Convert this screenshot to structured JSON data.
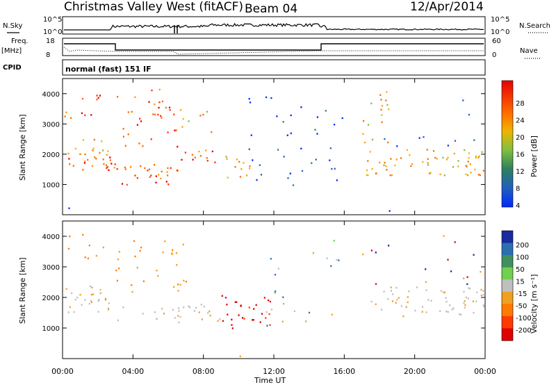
{
  "header": {
    "title": "Christmas Valley West (fitACF)",
    "beam": "Beam 04",
    "date": "12/Apr/2014"
  },
  "summary_panel": {
    "nsky_label": "N.Sky",
    "freq_label_line1": "Freq.",
    "freq_label_line2": "[MHz]",
    "cpid_label": "CPID",
    "nsearch_label": "N.Search",
    "nave_label": "Nave",
    "noise_ticks": [
      "10^5",
      "10^0"
    ],
    "noise_ticks_right": [
      "10^5",
      "10^0"
    ],
    "freq_ticks": [
      "18",
      "8"
    ],
    "nave_ticks": [
      "60",
      "0"
    ],
    "cpid_text": "normal (fast) 151 IF"
  },
  "chart_data": [
    {
      "type": "heatmap",
      "panel": "power",
      "ylabel": "Slant Range [km]",
      "yticks": [
        "1000",
        "2000",
        "3000",
        "4000"
      ],
      "ylim": [
        0,
        4500
      ],
      "xlim": [
        0,
        24
      ],
      "colorbar_label": "Power [dB]",
      "colorbar_ticks": [
        "28",
        "24",
        "20",
        "16",
        "12",
        "8",
        "4"
      ],
      "colorbar_colors": [
        "#e60000",
        "#ff3000",
        "#ff6a00",
        "#ff9d00",
        "#f0b400",
        "#7fbf3f",
        "#4f9f6f",
        "#2f7f5f",
        "#2060c0",
        "#0028ff"
      ]
    },
    {
      "type": "heatmap",
      "panel": "velocity",
      "ylabel": "Slant Range [km]",
      "yticks": [
        "1000",
        "2000",
        "3000",
        "4000"
      ],
      "ylim": [
        0,
        4500
      ],
      "xlim": [
        0,
        24
      ],
      "xlabel": "Time UT",
      "xticks": [
        "00:00",
        "04:00",
        "08:00",
        "12:00",
        "16:00",
        "20:00",
        "00:00"
      ],
      "colorbar_label": "Velocity [m s⁻¹]",
      "colorbar_ticks": [
        "200",
        "100",
        "50",
        "15",
        "-15",
        "-50",
        "-100",
        "-200"
      ],
      "colorbar_colors": [
        "#1a2a9f",
        "#2a6fb0",
        "#3f8f5f",
        "#6fd14f",
        "#bfbfbf",
        "#f0a020",
        "#ff7a00",
        "#ff3a00",
        "#e00000"
      ]
    }
  ]
}
